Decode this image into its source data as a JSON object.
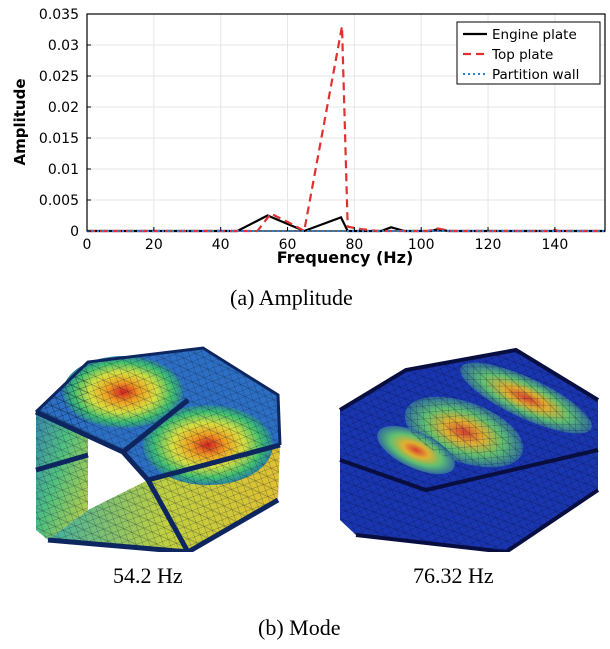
{
  "chart_data": {
    "type": "line",
    "title": "",
    "xlabel": "Frequency (Hz)",
    "ylabel": "Amplitude",
    "xlim": [
      0,
      155
    ],
    "ylim": [
      0,
      0.035
    ],
    "x_ticks": [
      "0",
      "20",
      "40",
      "60",
      "80",
      "100",
      "120",
      "140"
    ],
    "x_tick_values": [
      0,
      20,
      40,
      60,
      80,
      100,
      120,
      140
    ],
    "y_ticks": [
      "0",
      "0.005",
      "0.01",
      "0.015",
      "0.02",
      "0.025",
      "0.03",
      "0.035"
    ],
    "y_tick_values": [
      0,
      0.005,
      0.01,
      0.015,
      0.02,
      0.025,
      0.03,
      0.035
    ],
    "grid": true,
    "legend_position": "top-right",
    "series": [
      {
        "name": "Engine plate",
        "color": "#000000",
        "style": "solid",
        "points": [
          [
            0,
            0
          ],
          [
            45,
            0
          ],
          [
            54,
            0.0025
          ],
          [
            65,
            0
          ],
          [
            76,
            0.0022
          ],
          [
            78,
            0
          ],
          [
            88,
            0
          ],
          [
            91,
            0.0006
          ],
          [
            95,
            0
          ],
          [
            103,
            0
          ],
          [
            105,
            0.0003
          ],
          [
            108,
            0
          ],
          [
            155,
            0
          ]
        ]
      },
      {
        "name": "Top plate",
        "color": "#e03030",
        "style": "dashed",
        "points": [
          [
            0,
            0
          ],
          [
            51,
            0
          ],
          [
            55,
            0.0028
          ],
          [
            61,
            0.0012
          ],
          [
            65,
            0
          ],
          [
            76.3,
            0.033
          ],
          [
            78,
            0.0007
          ],
          [
            82,
            0.0003
          ],
          [
            87,
            0
          ],
          [
            102,
            0
          ],
          [
            105,
            0.0004
          ],
          [
            109,
            0
          ],
          [
            139,
            0
          ],
          [
            140,
            0.0002
          ],
          [
            141,
            0
          ],
          [
            155,
            0
          ]
        ]
      },
      {
        "name": "Partition wall",
        "color": "#2b7fd4",
        "style": "dotted",
        "points": [
          [
            0,
            0
          ],
          [
            155,
            0
          ]
        ]
      }
    ]
  },
  "captions": {
    "amplitude": "(a)  Amplitude",
    "mode": "(b)  Mode",
    "mode1_freq": "54.2  Hz",
    "mode2_freq": "76.32  Hz"
  }
}
